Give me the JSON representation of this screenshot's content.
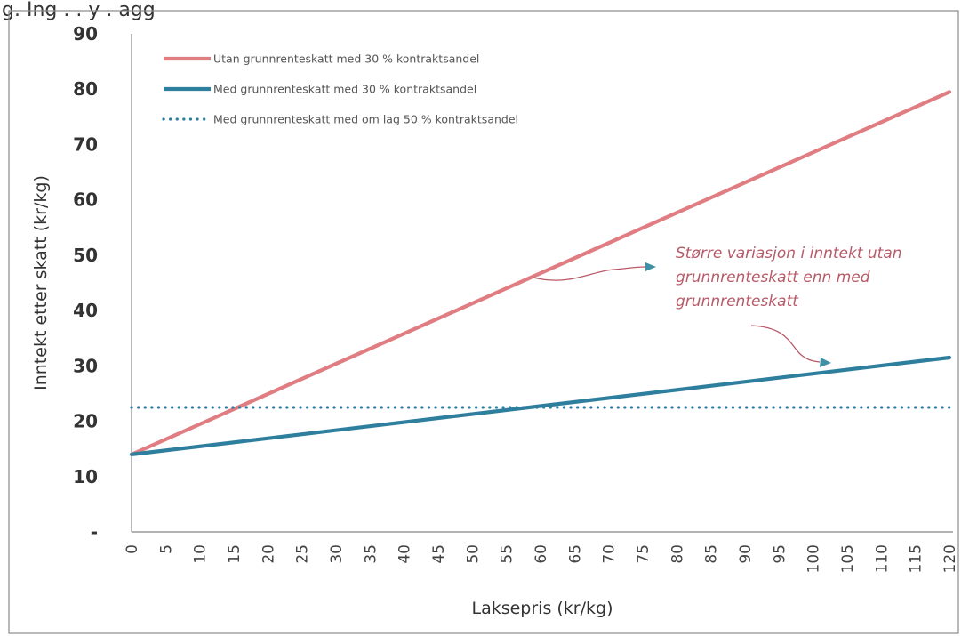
{
  "header_fragment": "g. Ing . . y    . agg",
  "chart_data": {
    "type": "line",
    "title": "",
    "xlabel": "Laksepris (kr/kg)",
    "ylabel": "Inntekt etter skatt (kr/kg)",
    "xlim": [
      0,
      120
    ],
    "ylim": [
      0,
      90
    ],
    "y_ticks": [
      "-",
      "10",
      "20",
      "30",
      "40",
      "50",
      "60",
      "70",
      "80",
      "90"
    ],
    "x_ticks": [
      "0",
      "5",
      "10",
      "15",
      "20",
      "25",
      "30",
      "35",
      "40",
      "45",
      "50",
      "55",
      "60",
      "65",
      "70",
      "75",
      "80",
      "85",
      "90",
      "95",
      "100",
      "105",
      "110",
      "115",
      "120"
    ],
    "grid": false,
    "legend_position": "top-left",
    "series": [
      {
        "name": "Utan grunnrenteskatt med 30 % kontraktsandel",
        "style": "solid",
        "color": "#e07d82",
        "x": [
          0,
          120
        ],
        "y": [
          14,
          79.5
        ]
      },
      {
        "name": "Med grunnrenteskatt med 30 % kontraktsandel",
        "style": "solid",
        "color": "#2e7f9e",
        "x": [
          0,
          120
        ],
        "y": [
          14,
          31.5
        ]
      },
      {
        "name": "Med grunnrenteskatt med om lag 50 % kontraktsandel",
        "style": "dotted",
        "color": "#2e7f9e",
        "x": [
          0,
          120
        ],
        "y": [
          22.5,
          22.5
        ]
      }
    ],
    "annotation": {
      "lines": [
        "Større variasjon i inntekt utan",
        "grunnrenteskatt enn med",
        "grunnrenteskatt"
      ],
      "color": "#b85a68"
    }
  }
}
